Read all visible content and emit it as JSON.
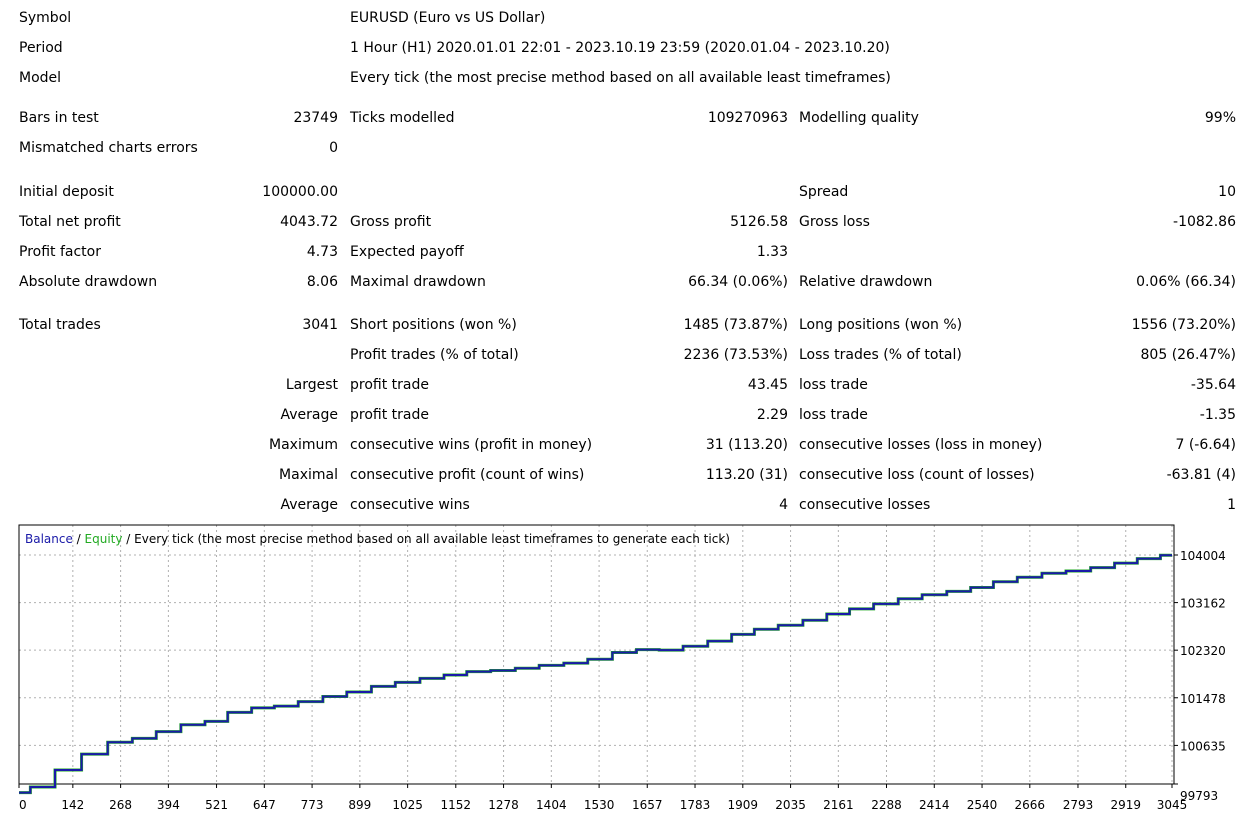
{
  "header": {
    "symbol_label": "Symbol",
    "symbol_value": "EURUSD (Euro vs US Dollar)",
    "period_label": "Period",
    "period_value": "1 Hour (H1) 2020.01.01 22:01 - 2023.10.19 23:59 (2020.01.04 - 2023.10.20)",
    "model_label": "Model",
    "model_value": "Every tick (the most precise method based on all available least timeframes)"
  },
  "quality": {
    "bars_label": "Bars in test",
    "bars_value": "23749",
    "ticks_label": "Ticks modelled",
    "ticks_value": "109270963",
    "mq_label": "Modelling quality",
    "mq_value": "99%",
    "mismatch_label": "Mismatched charts errors",
    "mismatch_value": "0"
  },
  "results": {
    "initial_deposit_label": "Initial deposit",
    "initial_deposit_value": "100000.00",
    "spread_label": "Spread",
    "spread_value": "10",
    "net_profit_label": "Total net profit",
    "net_profit_value": "4043.72",
    "gross_profit_label": "Gross profit",
    "gross_profit_value": "5126.58",
    "gross_loss_label": "Gross loss",
    "gross_loss_value": "-1082.86",
    "profit_factor_label": "Profit factor",
    "profit_factor_value": "4.73",
    "expected_payoff_label": "Expected payoff",
    "expected_payoff_value": "1.33",
    "abs_dd_label": "Absolute drawdown",
    "abs_dd_value": "8.06",
    "max_dd_label": "Maximal drawdown",
    "max_dd_value": "66.34 (0.06%)",
    "rel_dd_label": "Relative drawdown",
    "rel_dd_value": "0.06% (66.34)"
  },
  "trades": {
    "total_label": "Total trades",
    "total_value": "3041",
    "short_label": "Short positions (won %)",
    "short_value": "1485 (73.87%)",
    "long_label": "Long positions (won %)",
    "long_value": "1556 (73.20%)",
    "profit_trades_label": "Profit trades (% of total)",
    "profit_trades_value": "2236 (73.53%)",
    "loss_trades_label": "Loss trades (% of total)",
    "loss_trades_value": "805 (26.47%)",
    "largest_prefix": "Largest",
    "largest_profit_label": "profit trade",
    "largest_profit_value": "43.45",
    "largest_loss_label": "loss trade",
    "largest_loss_value": "-35.64",
    "average_prefix": "Average",
    "average_profit_label": "profit trade",
    "average_profit_value": "2.29",
    "average_loss_label": "loss trade",
    "average_loss_value": "-1.35",
    "maximum_prefix": "Maximum",
    "max_cons_wins_label": "consecutive wins (profit in money)",
    "max_cons_wins_value": "31 (113.20)",
    "max_cons_losses_label": "consecutive losses (loss in money)",
    "max_cons_losses_value": "7 (-6.64)",
    "maximal_prefix": "Maximal",
    "maximal_cons_profit_label": "consecutive profit (count of wins)",
    "maximal_cons_profit_value": "113.20 (31)",
    "maximal_cons_loss_label": "consecutive loss (count of losses)",
    "maximal_cons_loss_value": "-63.81 (4)",
    "average2_prefix": "Average",
    "avg_cons_wins_label": "consecutive wins",
    "avg_cons_wins_value": "4",
    "avg_cons_losses_label": "consecutive losses",
    "avg_cons_losses_value": "1"
  },
  "chart_data": {
    "type": "line",
    "legend": {
      "balance": "Balance",
      "sep1": " / ",
      "equity": "Equity",
      "sep2": " / ",
      "rest": "Every tick (the most precise method based on all available least timeframes to generate each tick)"
    },
    "colors": {
      "balance": "#1a1aa8",
      "equity": "#22aa22",
      "grid": "#b0b0b0"
    },
    "grid": true,
    "xlim": [
      0,
      3041
    ],
    "ylim": [
      99793,
      104004
    ],
    "x_ticks": [
      0,
      142,
      268,
      394,
      521,
      647,
      773,
      899,
      1025,
      1152,
      1278,
      1404,
      1530,
      1657,
      1783,
      1909,
      2035,
      2161,
      2288,
      2414,
      2540,
      2666,
      2793,
      2919,
      3045
    ],
    "y_ticks": [
      104004,
      103162,
      102320,
      101478,
      100635,
      99793
    ],
    "series": [
      {
        "name": "Balance",
        "x": [
          0,
          60,
          130,
          200,
          268,
          330,
          394,
          460,
          521,
          580,
          647,
          700,
          773,
          830,
          899,
          960,
          1025,
          1090,
          1152,
          1210,
          1278,
          1340,
          1404,
          1470,
          1530,
          1600,
          1657,
          1720,
          1783,
          1850,
          1909,
          1970,
          2035,
          2100,
          2161,
          2220,
          2288,
          2350,
          2414,
          2480,
          2540,
          2600,
          2666,
          2730,
          2793,
          2860,
          2919,
          2980,
          3041
        ],
        "y": [
          99800,
          99900,
          100200,
          100480,
          100690,
          100760,
          100880,
          101000,
          101060,
          101220,
          101300,
          101330,
          101410,
          101500,
          101580,
          101680,
          101750,
          101820,
          101880,
          101940,
          101960,
          102000,
          102050,
          102090,
          102160,
          102280,
          102330,
          102320,
          102390,
          102480,
          102600,
          102690,
          102760,
          102850,
          102960,
          103050,
          103140,
          103230,
          103300,
          103360,
          103430,
          103530,
          103610,
          103680,
          103720,
          103780,
          103860,
          103940,
          104000
        ]
      }
    ]
  }
}
